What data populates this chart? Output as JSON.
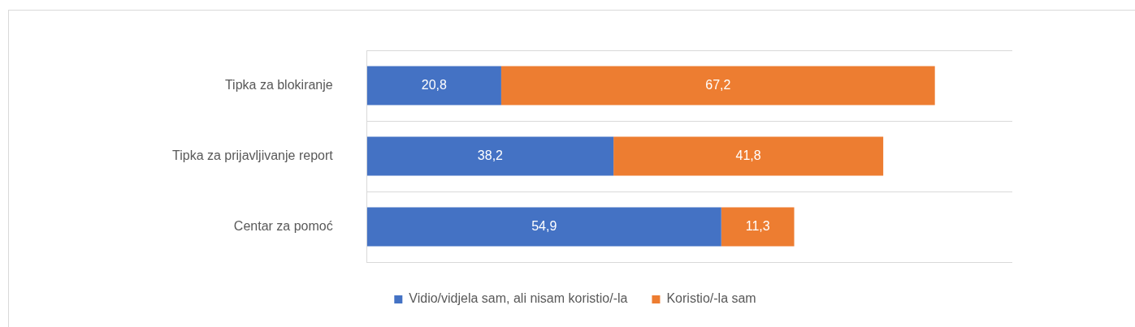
{
  "chart_data": {
    "type": "bar",
    "orientation": "horizontal",
    "stacked": true,
    "tick_labels": "y",
    "grid": "y",
    "legend": "bottom",
    "xlim": [
      0,
      100
    ],
    "categories": [
      "Tipka za blokiranje",
      "Tipka za prijavljivanje report",
      "Centar za pomoć"
    ],
    "series": [
      {
        "name": "Vidio/vidjela sam, ali nisam koristio/-la",
        "color": "#4472c4",
        "values": [
          20.8,
          38.2,
          54.9
        ],
        "value_labels": [
          "20,8",
          "38,2",
          "54,9"
        ]
      },
      {
        "name": "Koristio/-la sam",
        "color": "#ed7d31",
        "values": [
          67.2,
          41.8,
          11.3
        ],
        "value_labels": [
          "67,2",
          "41,8",
          "11,3"
        ]
      }
    ]
  }
}
